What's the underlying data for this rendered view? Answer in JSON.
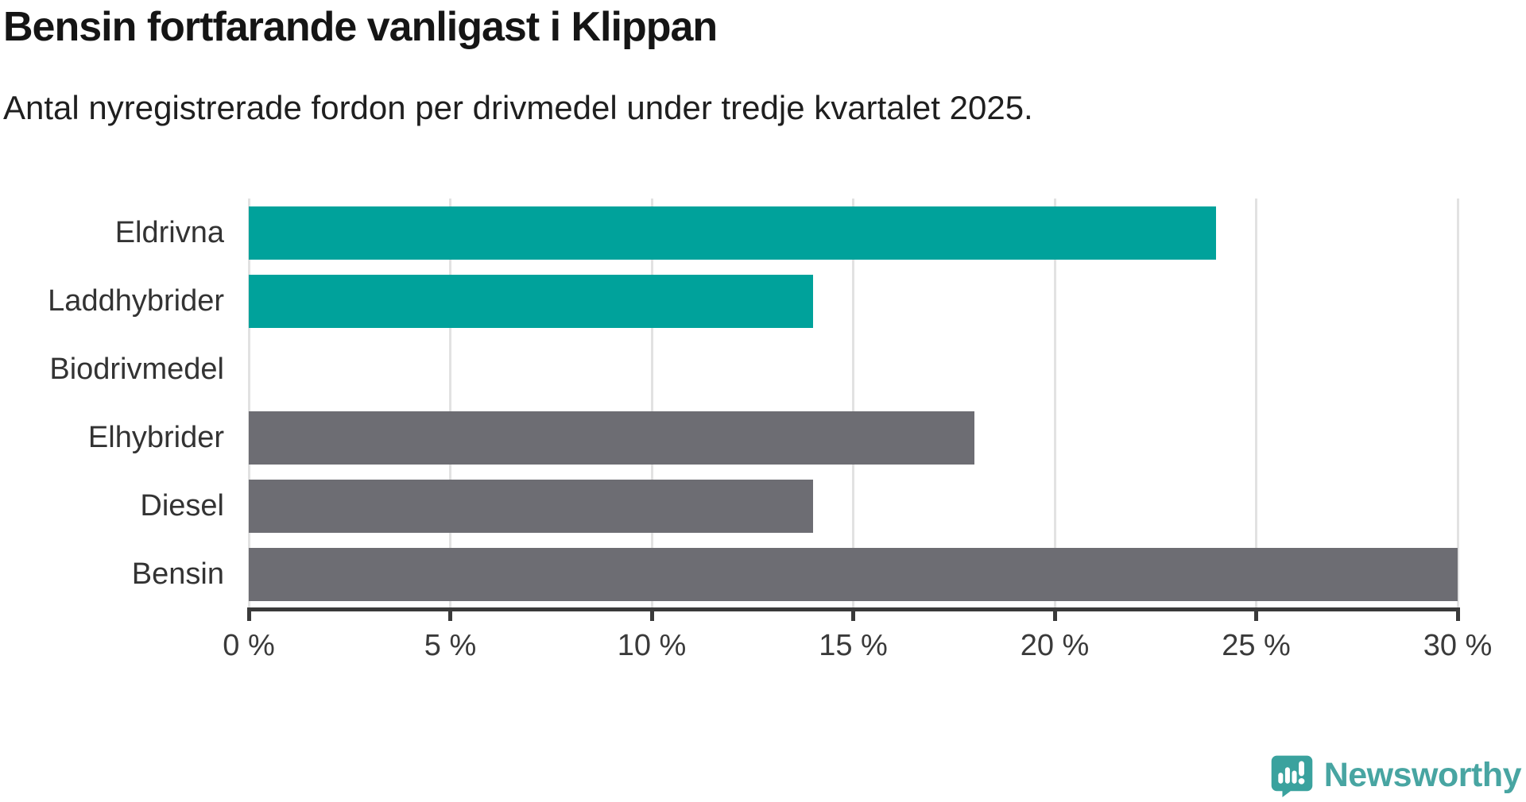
{
  "chart_data": {
    "type": "bar",
    "orientation": "horizontal",
    "title": "Bensin fortfarande vanligast i Klippan",
    "subtitle": "Antal nyregistrerade fordon per drivmedel under tredje kvartalet 2025.",
    "categories": [
      "Eldrivna",
      "Laddhybrider",
      "Biodrivmedel",
      "Elhybrider",
      "Diesel",
      "Bensin"
    ],
    "values": [
      24,
      14,
      0,
      18,
      14,
      30
    ],
    "bar_colors": [
      "#00a29b",
      "#00a29b",
      "#00a29b",
      "#6d6d73",
      "#6d6d73",
      "#6d6d73"
    ],
    "highlight_color": "#00a29b",
    "default_color": "#6d6d73",
    "xlabel": "",
    "ylabel": "",
    "xlim": [
      0,
      30
    ],
    "x_ticks": [
      0,
      5,
      10,
      15,
      20,
      25,
      30
    ],
    "x_tick_labels": [
      "0 %",
      "5 %",
      "10 %",
      "15 %",
      "20 %",
      "25 %",
      "30 %"
    ],
    "grid": "vertical",
    "gridline_color": "#e2e2e2",
    "axis_color": "#3a3a3a",
    "legend": "none"
  },
  "branding": {
    "logo_text": "Newsworthy",
    "logo_icon": "newsworthy-speech-bubble-bars-icon",
    "logo_text_color": "#48a5a2",
    "logo_icon_color": "#3aa29e"
  }
}
